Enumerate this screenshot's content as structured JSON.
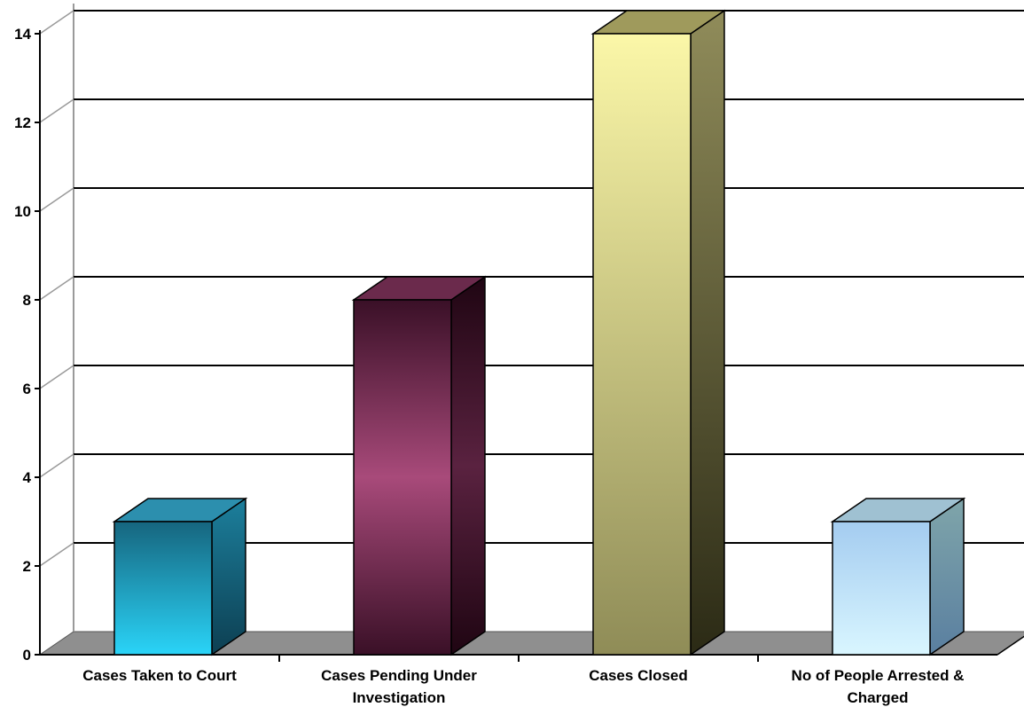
{
  "chart_data": {
    "type": "bar",
    "categories": [
      [
        "Cases Taken to Court"
      ],
      [
        "Cases Pending Under",
        "Investigation"
      ],
      [
        "Cases Closed"
      ],
      [
        "No of People Arrested &",
        "Charged"
      ]
    ],
    "values": [
      3,
      8,
      14,
      3
    ],
    "ylim": [
      0,
      14
    ],
    "yticks": [
      "0",
      "2",
      "4",
      "6",
      "8",
      "10",
      "12",
      "14"
    ],
    "grid": true,
    "three_d": true,
    "bar_colors": [
      {
        "top": "#2c8fae",
        "light": "#2ad4f8",
        "dark": "#16657e",
        "side_light": "#1c7f9c",
        "side_dark": "#0d3f52"
      },
      {
        "top": "#6b2a4c",
        "light": "#a84a7a",
        "dark": "#3a1027",
        "side_light": "#5a2240",
        "side_dark": "#1f0512"
      },
      {
        "top": "#9f9a5c",
        "light": "#fbf7a8",
        "dark": "#8f8c57",
        "side_light": "#908c5a",
        "side_dark": "#2b2a15"
      },
      {
        "top": "#9fc1d2",
        "light": "#d9f6ff",
        "dark": "#a4ccf0",
        "side_light": "#7fa5aa",
        "side_dark": "#5a7fa0"
      }
    ],
    "floor_color": "#8f8f8f",
    "wall_color": "#ffffff",
    "grid_color": "#000000"
  }
}
